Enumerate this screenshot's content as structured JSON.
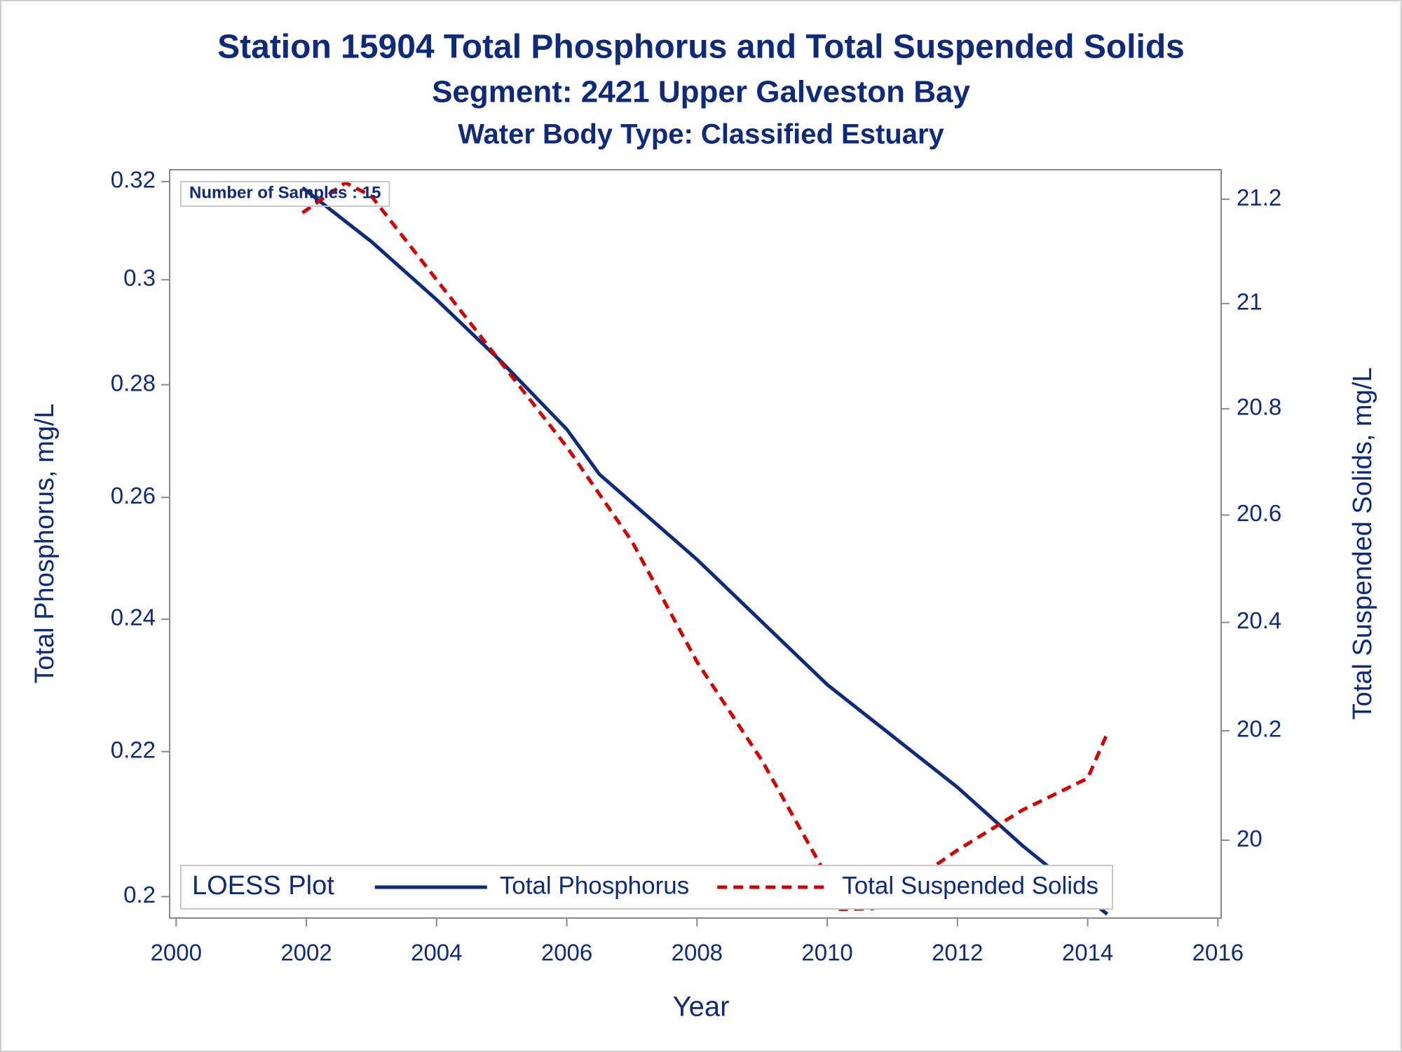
{
  "chart_data": {
    "type": "line",
    "title": "Station 15904  Total Phosphorus and Total Suspended Solids",
    "subtitles": [
      "Segment: 2421  Upper Galveston Bay",
      "Water Body Type: Classified Estuary"
    ],
    "xlabel": "Year",
    "ylabel": "Total Phosphorus, mg/L",
    "y2label": "Total Suspended Solids, mg/L",
    "annotation": "Number of Samples : 15",
    "legend_title": "LOESS Plot",
    "legend_position": "bottom",
    "xlim": [
      1999.9,
      2016.05
    ],
    "xticks": [
      2000,
      2002,
      2004,
      2006,
      2008,
      2010,
      2012,
      2014,
      2016
    ],
    "ylim": [
      0.1972,
      0.3225
    ],
    "yticks": [
      0.2,
      0.22,
      0.24,
      0.26,
      0.28,
      0.3,
      0.32
    ],
    "y2lim": [
      19.859,
      21.257
    ],
    "y2ticks": [
      20,
      20.2,
      20.4,
      20.6,
      20.8,
      21,
      21.2
    ],
    "log_y": true,
    "log_y2": true,
    "series": [
      {
        "name": "Total Phosphorus",
        "color": "#0f2a78",
        "dash": "solid",
        "x": [
          2001.94,
          2003,
          2004,
          2005,
          2006,
          2006.5,
          2008,
          2010,
          2012,
          2013,
          2014.3
        ],
        "values": [
          0.3187,
          0.3076,
          0.2961,
          0.2842,
          0.2719,
          0.264,
          0.2496,
          0.2299,
          0.2149,
          0.2068,
          0.1977
        ]
      },
      {
        "name": "Total Suspended Solids",
        "color": "#cc0000",
        "dash": "dashed",
        "axis": "y2",
        "x": [
          2001.94,
          2002.6,
          2003,
          2006,
          2007,
          2008,
          2009,
          2010,
          2010.2,
          2010.7,
          2012,
          2013,
          2014,
          2014.3
        ],
        "values": [
          21.174,
          21.232,
          21.206,
          20.728,
          20.551,
          20.327,
          20.145,
          19.933,
          19.875,
          19.876,
          19.982,
          20.055,
          20.113,
          20.195
        ]
      }
    ]
  }
}
